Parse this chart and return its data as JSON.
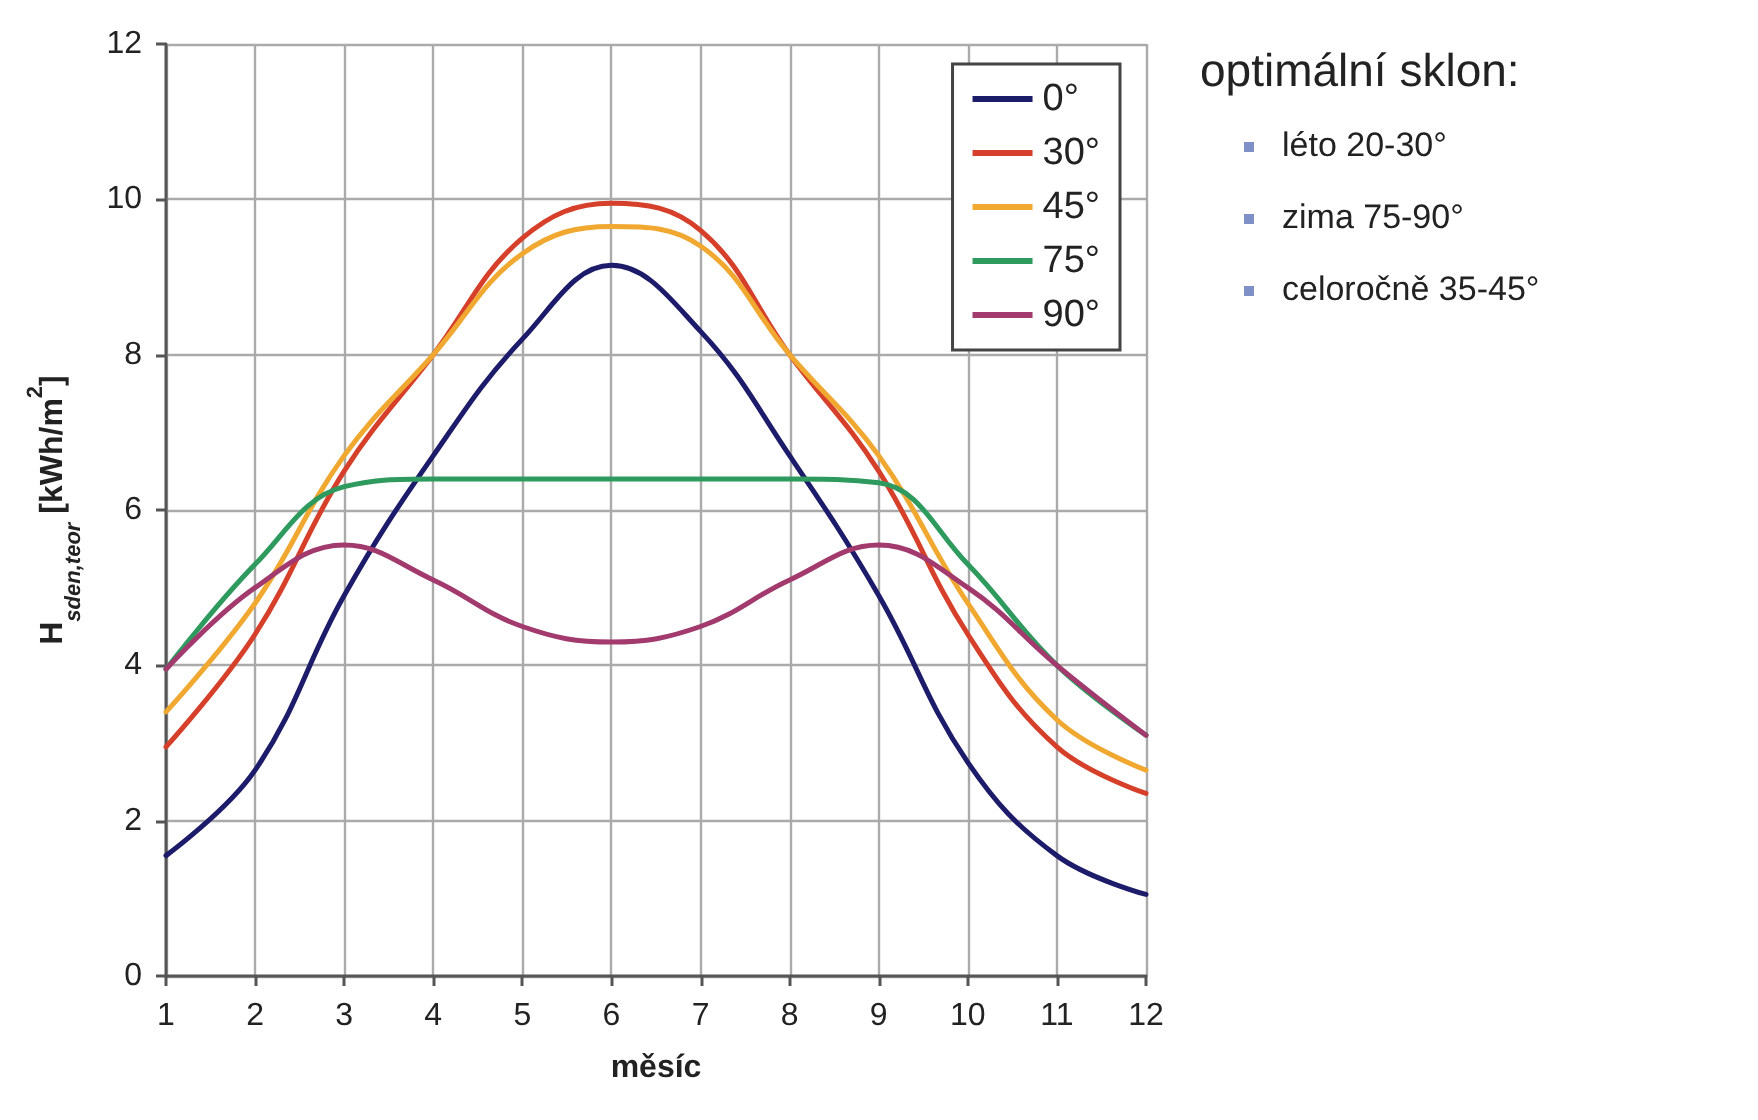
{
  "chart_data": {
    "type": "line",
    "xlabel": "měsíc",
    "ylabel": "H$_{sden,teor}$ [kWh/m$^{2}$]",
    "x": [
      1,
      2,
      3,
      4,
      5,
      6,
      7,
      8,
      9,
      10,
      11,
      12
    ],
    "series": [
      {
        "name": "0°",
        "color": "#1c1c6b",
        "values": [
          1.55,
          2.65,
          4.9,
          6.7,
          8.2,
          9.15,
          8.3,
          6.7,
          4.9,
          2.75,
          1.55,
          1.05
        ]
      },
      {
        "name": "30°",
        "color": "#d6402a",
        "values": [
          2.95,
          4.4,
          6.5,
          8.0,
          9.5,
          9.95,
          9.6,
          8.0,
          6.5,
          4.4,
          2.95,
          2.35
        ]
      },
      {
        "name": "45°",
        "color": "#f0a830",
        "values": [
          3.4,
          4.8,
          6.7,
          8.0,
          9.3,
          9.65,
          9.4,
          8.0,
          6.7,
          4.8,
          3.3,
          2.65
        ]
      },
      {
        "name": "75°",
        "color": "#2e9a5e",
        "values": [
          3.95,
          5.3,
          6.3,
          6.4,
          6.4,
          6.4,
          6.4,
          6.4,
          6.35,
          5.3,
          4.0,
          3.1
        ]
      },
      {
        "name": "90°",
        "color": "#a23a6e",
        "values": [
          3.95,
          5.0,
          5.55,
          5.1,
          4.5,
          4.3,
          4.5,
          5.1,
          5.55,
          5.0,
          4.0,
          3.1
        ]
      }
    ],
    "xlim": [
      1,
      12
    ],
    "xticks": [
      1,
      2,
      3,
      4,
      5,
      6,
      7,
      8,
      9,
      10,
      11,
      12
    ],
    "ylim": [
      0,
      12
    ],
    "yticks": [
      0,
      2,
      4,
      6,
      8,
      10,
      12
    ],
    "grid": true,
    "legend": "top right",
    "marker": "none",
    "line_style": "solid",
    "annotations": [
      "optimální sklon:",
      "léto 20-30°",
      "zima 75-90°",
      "celoročně 35-45°"
    ]
  }
}
